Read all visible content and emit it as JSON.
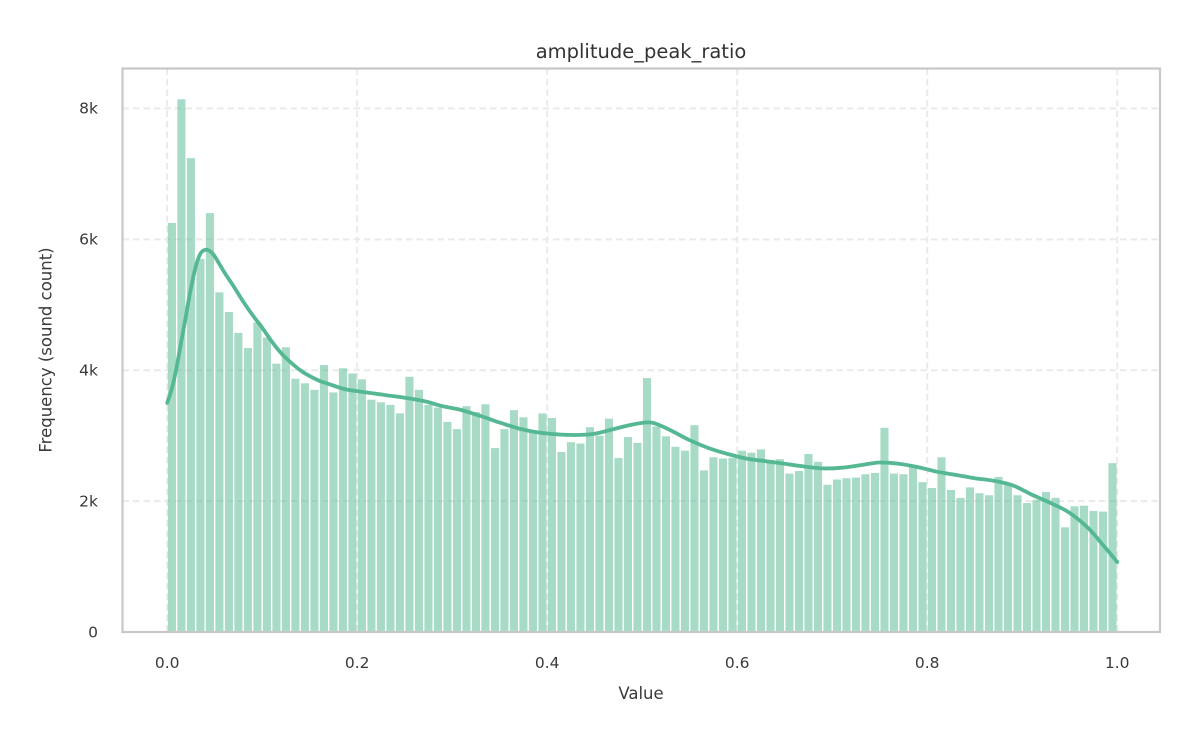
{
  "chart_data": {
    "type": "bar",
    "subtype": "histogram-with-kde",
    "title": "amplitude_peak_ratio",
    "xlabel": "Value",
    "ylabel": "Frequency (sound count)",
    "xlim": [
      -0.047,
      1.045
    ],
    "ylim": [
      0,
      8610
    ],
    "grid": true,
    "legend": false,
    "x_ticks": [
      {
        "v": 0.0,
        "label": "0.0"
      },
      {
        "v": 0.2,
        "label": "0.2"
      },
      {
        "v": 0.4,
        "label": "0.4"
      },
      {
        "v": 0.6,
        "label": "0.6"
      },
      {
        "v": 0.8,
        "label": "0.8"
      },
      {
        "v": 1.0,
        "label": "1.0"
      }
    ],
    "y_ticks": [
      {
        "v": 0,
        "label": "0"
      },
      {
        "v": 2000,
        "label": "2k"
      },
      {
        "v": 4000,
        "label": "4k"
      },
      {
        "v": 6000,
        "label": "6k"
      },
      {
        "v": 8000,
        "label": "8k"
      }
    ],
    "bins": {
      "start": 0.0,
      "width": 0.01,
      "counts": [
        6250,
        8140,
        7240,
        5700,
        6400,
        5190,
        4890,
        4570,
        4340,
        4730,
        4500,
        4100,
        4350,
        3870,
        3800,
        3700,
        4080,
        3660,
        4030,
        3950,
        3860,
        3550,
        3510,
        3470,
        3340,
        3900,
        3700,
        3470,
        3430,
        3210,
        3100,
        3450,
        3360,
        3480,
        2810,
        3100,
        3390,
        3280,
        3050,
        3340,
        3270,
        2750,
        2900,
        2880,
        3130,
        3000,
        3260,
        2660,
        2980,
        2890,
        3880,
        3140,
        2990,
        2830,
        2770,
        3160,
        2470,
        2670,
        2650,
        2660,
        2770,
        2740,
        2790,
        2630,
        2640,
        2420,
        2460,
        2720,
        2600,
        2250,
        2330,
        2350,
        2360,
        2410,
        2430,
        3120,
        2420,
        2410,
        2540,
        2290,
        2200,
        2670,
        2170,
        2050,
        2210,
        2120,
        2090,
        2370,
        2270,
        2090,
        1970,
        2020,
        2140,
        2050,
        1600,
        1920,
        1930,
        1850,
        1840,
        2580
      ]
    },
    "kde": [
      [
        0.0,
        3500
      ],
      [
        0.005,
        3720
      ],
      [
        0.01,
        4050
      ],
      [
        0.015,
        4450
      ],
      [
        0.02,
        4850
      ],
      [
        0.025,
        5250
      ],
      [
        0.03,
        5580
      ],
      [
        0.035,
        5780
      ],
      [
        0.04,
        5840
      ],
      [
        0.045,
        5820
      ],
      [
        0.05,
        5740
      ],
      [
        0.06,
        5500
      ],
      [
        0.07,
        5280
      ],
      [
        0.08,
        5050
      ],
      [
        0.09,
        4840
      ],
      [
        0.1,
        4650
      ],
      [
        0.11,
        4440
      ],
      [
        0.12,
        4260
      ],
      [
        0.13,
        4120
      ],
      [
        0.14,
        4000
      ],
      [
        0.15,
        3910
      ],
      [
        0.16,
        3840
      ],
      [
        0.17,
        3790
      ],
      [
        0.18,
        3740
      ],
      [
        0.19,
        3700
      ],
      [
        0.21,
        3660
      ],
      [
        0.23,
        3620
      ],
      [
        0.25,
        3580
      ],
      [
        0.27,
        3530
      ],
      [
        0.29,
        3450
      ],
      [
        0.31,
        3390
      ],
      [
        0.33,
        3300
      ],
      [
        0.35,
        3200
      ],
      [
        0.37,
        3110
      ],
      [
        0.39,
        3050
      ],
      [
        0.41,
        3020
      ],
      [
        0.43,
        3010
      ],
      [
        0.45,
        3030
      ],
      [
        0.47,
        3100
      ],
      [
        0.49,
        3170
      ],
      [
        0.51,
        3200
      ],
      [
        0.53,
        3080
      ],
      [
        0.55,
        2930
      ],
      [
        0.57,
        2810
      ],
      [
        0.59,
        2720
      ],
      [
        0.61,
        2650
      ],
      [
        0.63,
        2610
      ],
      [
        0.65,
        2570
      ],
      [
        0.67,
        2530
      ],
      [
        0.69,
        2500
      ],
      [
        0.71,
        2510
      ],
      [
        0.73,
        2550
      ],
      [
        0.75,
        2590
      ],
      [
        0.77,
        2570
      ],
      [
        0.79,
        2520
      ],
      [
        0.81,
        2450
      ],
      [
        0.83,
        2400
      ],
      [
        0.85,
        2350
      ],
      [
        0.87,
        2310
      ],
      [
        0.89,
        2240
      ],
      [
        0.91,
        2100
      ],
      [
        0.93,
        1970
      ],
      [
        0.95,
        1820
      ],
      [
        0.97,
        1580
      ],
      [
        0.985,
        1330
      ],
      [
        1.0,
        1070
      ]
    ],
    "colors": {
      "bar": "#5fbd98",
      "bar_alpha": 0.55,
      "kde_line": "#55b893",
      "grid": "#eaeaea",
      "spine": "#c8c8c8",
      "tick_text": "#3a3a3a",
      "title_text": "#333333"
    }
  }
}
